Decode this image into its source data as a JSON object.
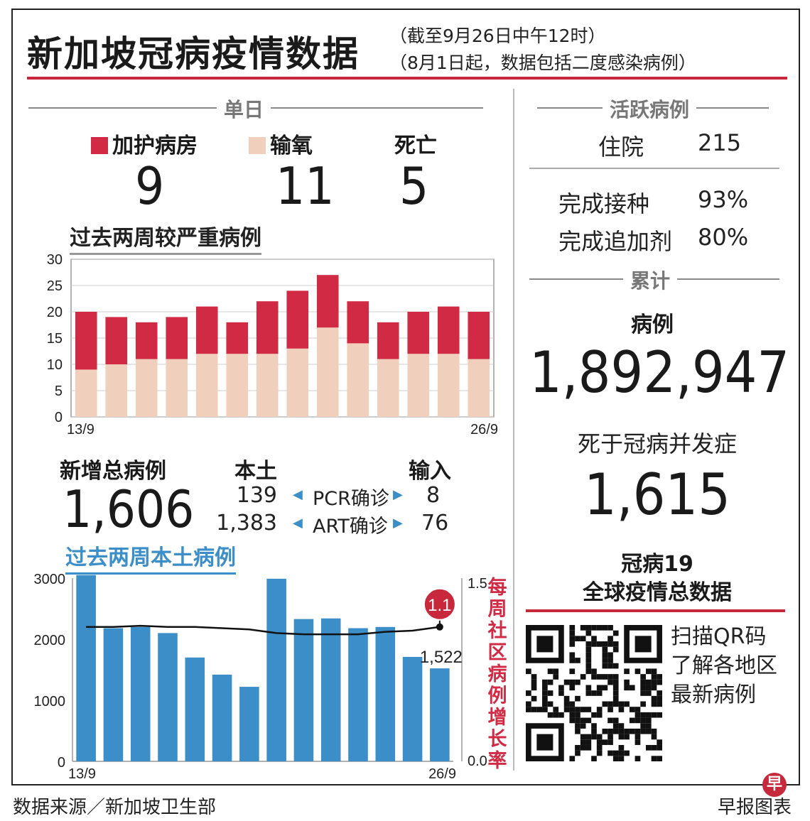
{
  "header": {
    "title": "新加坡冠病疫情数据",
    "subtitle_1": "（截至9月26日中午12时）",
    "subtitle_2": "（8月1日起，数据包括二度感染病例）"
  },
  "daily": {
    "heading": "单日",
    "icu_label": "加护病房",
    "oxygen_label": "输氧",
    "death_label": "死亡",
    "icu": "9",
    "oxygen": "11",
    "death": "5"
  },
  "active": {
    "heading": "活跃病例",
    "hosp_label": "住院",
    "hosp": "215",
    "vacc_label": "完成接种",
    "vacc": "93%",
    "booster_label": "完成追加剂",
    "booster": "80%"
  },
  "cumulative": {
    "heading": "累计",
    "cases_label": "病例",
    "cases": "1,892,947",
    "deaths_label": "死于冠病并发症",
    "deaths": "1,615"
  },
  "new_cases": {
    "label": "新增总病例",
    "total": "1,606",
    "local_label": "本土",
    "import_label": "输入",
    "pcr_label": "PCR确诊",
    "art_label": "ART确诊",
    "pcr_local": "139",
    "pcr_import": "8",
    "art_local": "1,383",
    "art_import": "76"
  },
  "global": {
    "line1": "冠病19",
    "line2": "全球疫情总数据",
    "qr_line1": "扫描QR码",
    "qr_line2": "了解各地区",
    "qr_line3": "最新病例"
  },
  "footer": {
    "source": "数据来源／新加坡卫生部",
    "credit": "早报图表",
    "logo_char": "早"
  },
  "colors": {
    "red": "#d12a44",
    "pink": "#f1cfbd",
    "blue": "#3b8ec8",
    "accent": "#c8283c"
  },
  "chart_data": [
    {
      "type": "bar",
      "stacked": true,
      "title": "过去两周较严重病例",
      "x_start_label": "13/9",
      "x_end_label": "26/9",
      "ylim": [
        0,
        30
      ],
      "yticks": [
        0,
        5,
        10,
        15,
        20,
        25,
        30
      ],
      "grid": true,
      "series": [
        {
          "name": "输氧",
          "color": "#f1cfbd",
          "values": [
            9,
            10,
            11,
            11,
            12,
            12,
            12,
            13,
            17,
            14,
            11,
            12,
            12,
            11
          ]
        },
        {
          "name": "加护病房",
          "color": "#d12a44",
          "values": [
            11,
            9,
            7,
            8,
            9,
            6,
            10,
            11,
            10,
            8,
            7,
            8,
            9,
            9
          ]
        }
      ]
    },
    {
      "type": "bar+line",
      "title": "过去两周本土病例",
      "x_start_label": "13/9",
      "x_end_label": "26/9",
      "ylim": [
        0,
        3000
      ],
      "yticks": [
        0,
        1000,
        2000,
        3000
      ],
      "y2lim": [
        0.0,
        1.5
      ],
      "y2ticks": [
        "0.0",
        "1.5"
      ],
      "y2label": "每周社区病例增长率",
      "bars": {
        "color": "#3b8ec8",
        "values": [
          3050,
          2180,
          2200,
          2100,
          1700,
          1420,
          1220,
          2990,
          2330,
          2340,
          2180,
          2200,
          1710,
          1522
        ]
      },
      "last_bar_label": "1,522",
      "line": {
        "color": "#111",
        "values": [
          1.1,
          1.1,
          1.11,
          1.1,
          1.1,
          1.09,
          1.08,
          1.05,
          1.04,
          1.04,
          1.04,
          1.06,
          1.07,
          1.1
        ]
      },
      "last_line_label": "1.1"
    }
  ]
}
